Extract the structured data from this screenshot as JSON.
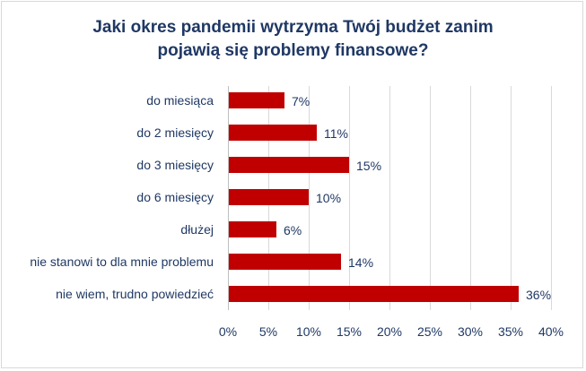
{
  "chart_data": {
    "type": "bar",
    "orientation": "horizontal",
    "title_lines": [
      "Jaki okres pandemii wytrzyma Twój budżet zanim",
      "pojawią się problemy finansowe?"
    ],
    "categories": [
      "do miesiąca",
      "do 2 miesięcy",
      "do 3 miesięcy",
      "do 6 miesięcy",
      "dłużej",
      "nie stanowi to dla mnie problemu",
      "nie wiem, trudno powiedzieć"
    ],
    "values": [
      7,
      11,
      15,
      10,
      6,
      14,
      36
    ],
    "value_labels": [
      "7%",
      "11%",
      "15%",
      "10%",
      "6%",
      "14%",
      "36%"
    ],
    "xlim": [
      0,
      40
    ],
    "xticks": [
      0,
      5,
      10,
      15,
      20,
      25,
      30,
      35,
      40
    ],
    "xtick_labels": [
      "0%",
      "5%",
      "10%",
      "15%",
      "20%",
      "25%",
      "30%",
      "35%",
      "40%"
    ],
    "grid": true,
    "bar_color": "#c00000",
    "text_color": "#1f3864"
  }
}
